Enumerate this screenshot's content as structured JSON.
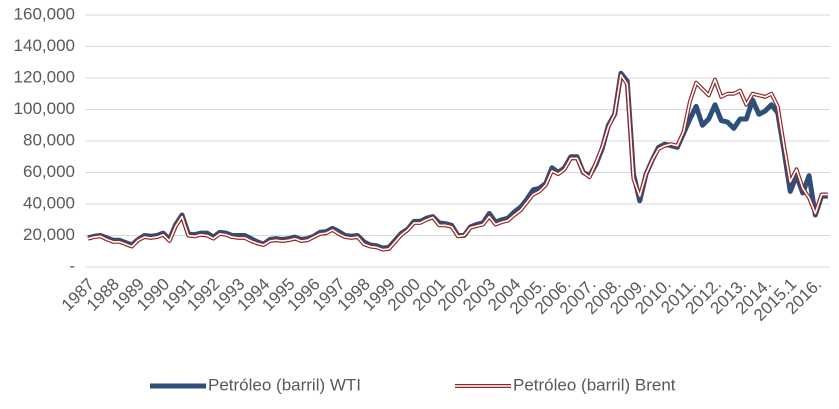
{
  "chart_data": {
    "type": "line",
    "categories": [
      "1987",
      null,
      null,
      null,
      "1988",
      null,
      null,
      null,
      "1989",
      null,
      null,
      null,
      "1990",
      null,
      null,
      null,
      "1991",
      null,
      null,
      null,
      "1992",
      null,
      null,
      null,
      "1993",
      null,
      null,
      null,
      "1994",
      null,
      null,
      null,
      "1995",
      null,
      null,
      null,
      "1996",
      null,
      null,
      null,
      "1997",
      null,
      null,
      null,
      "1998",
      null,
      null,
      null,
      "1999",
      null,
      null,
      null,
      "2000",
      null,
      null,
      null,
      "2001",
      null,
      null,
      null,
      "2002",
      null,
      null,
      null,
      "2003",
      null,
      null,
      null,
      "2004",
      null,
      null,
      null,
      "2005.",
      null,
      null,
      null,
      "2006.",
      null,
      null,
      null,
      "2007.",
      null,
      null,
      null,
      "2008.",
      null,
      null,
      null,
      "2009.",
      null,
      null,
      null,
      "2010.",
      null,
      null,
      null,
      "2011.",
      null,
      null,
      null,
      "2012.",
      null,
      null,
      null,
      "2013.",
      null,
      null,
      null,
      "2014.",
      null,
      null,
      null,
      "2015.1",
      null,
      null,
      null,
      "2016.",
      null,
      null
    ],
    "series": [
      {
        "name": "Petróleo (barril)  WTI",
        "color": "#2e4f7a",
        "values": [
          18500,
          19500,
          20000,
          18500,
          17000,
          17000,
          15500,
          14000,
          17500,
          20000,
          19500,
          20000,
          21500,
          17500,
          27000,
          33000,
          21000,
          20500,
          21500,
          21500,
          19000,
          22000,
          21500,
          20000,
          20000,
          20000,
          18000,
          16000,
          14500,
          17500,
          18000,
          17500,
          18000,
          19000,
          17500,
          18000,
          19500,
          22000,
          22500,
          24500,
          22500,
          20000,
          19500,
          20000,
          16000,
          14000,
          13500,
          12000,
          12500,
          17000,
          21500,
          24000,
          29000,
          29000,
          31000,
          32000,
          28000,
          27500,
          26500,
          20000,
          20000,
          25500,
          27000,
          28000,
          34000,
          28500,
          30000,
          31000,
          35000,
          38000,
          43000,
          49000,
          50000,
          53000,
          63000,
          60000,
          63000,
          70000,
          70000,
          60000,
          58000,
          65000,
          75000,
          90000,
          97000,
          123000,
          118000,
          59000,
          42000,
          59000,
          68000,
          76000,
          78000,
          77000,
          76000,
          85000,
          94000,
          102000,
          90000,
          94000,
          103000,
          93000,
          92000,
          88000,
          94000,
          94000,
          106000,
          97000,
          99000,
          103000,
          98000,
          74000,
          48000,
          58000,
          47000,
          58000,
          33000,
          45000,
          45000
        ]
      },
      {
        "name": "Petróleo (barril) Brent",
        "color": "#8b2a2a",
        "values": [
          18000,
          19000,
          19500,
          17500,
          16000,
          16000,
          14500,
          13000,
          17000,
          19000,
          18500,
          19000,
          20500,
          16500,
          26000,
          32000,
          20000,
          19500,
          20500,
          20000,
          18000,
          21000,
          20500,
          19000,
          18500,
          18500,
          16500,
          15000,
          14000,
          16500,
          17000,
          16500,
          17000,
          18000,
          16500,
          17000,
          19000,
          21000,
          21500,
          23500,
          21000,
          19000,
          18500,
          19000,
          14500,
          13000,
          12500,
          11000,
          11500,
          16000,
          20500,
          23500,
          28000,
          28000,
          30000,
          31500,
          26500,
          26500,
          25500,
          19500,
          20000,
          25000,
          26000,
          27000,
          32000,
          27000,
          28500,
          29500,
          33000,
          36000,
          41000,
          46000,
          48000,
          52000,
          61000,
          59000,
          62000,
          69000,
          69000,
          60000,
          57000,
          66000,
          76000,
          89000,
          97000,
          122000,
          116000,
          56000,
          45000,
          59000,
          68000,
          75000,
          77000,
          78000,
          77000,
          86000,
          105000,
          117000,
          113000,
          109000,
          119000,
          108000,
          110000,
          110000,
          112000,
          103000,
          110000,
          109000,
          108000,
          110000,
          102000,
          77000,
          54000,
          62000,
          50000,
          44000,
          34000,
          46000,
          46000
        ]
      }
    ],
    "ylim": [
      0,
      160000
    ],
    "yticks": [
      {
        "value": 0,
        "label": "-"
      },
      {
        "value": 20000,
        "label": "20,000"
      },
      {
        "value": 40000,
        "label": "40,000"
      },
      {
        "value": 60000,
        "label": "60,000"
      },
      {
        "value": 80000,
        "label": "80,000"
      },
      {
        "value": 100000,
        "label": "100,000"
      },
      {
        "value": 120000,
        "label": "120,000"
      },
      {
        "value": 140000,
        "label": "140,000"
      },
      {
        "value": 160000,
        "label": "160,000"
      }
    ],
    "grid": true,
    "legend": "bottom"
  }
}
